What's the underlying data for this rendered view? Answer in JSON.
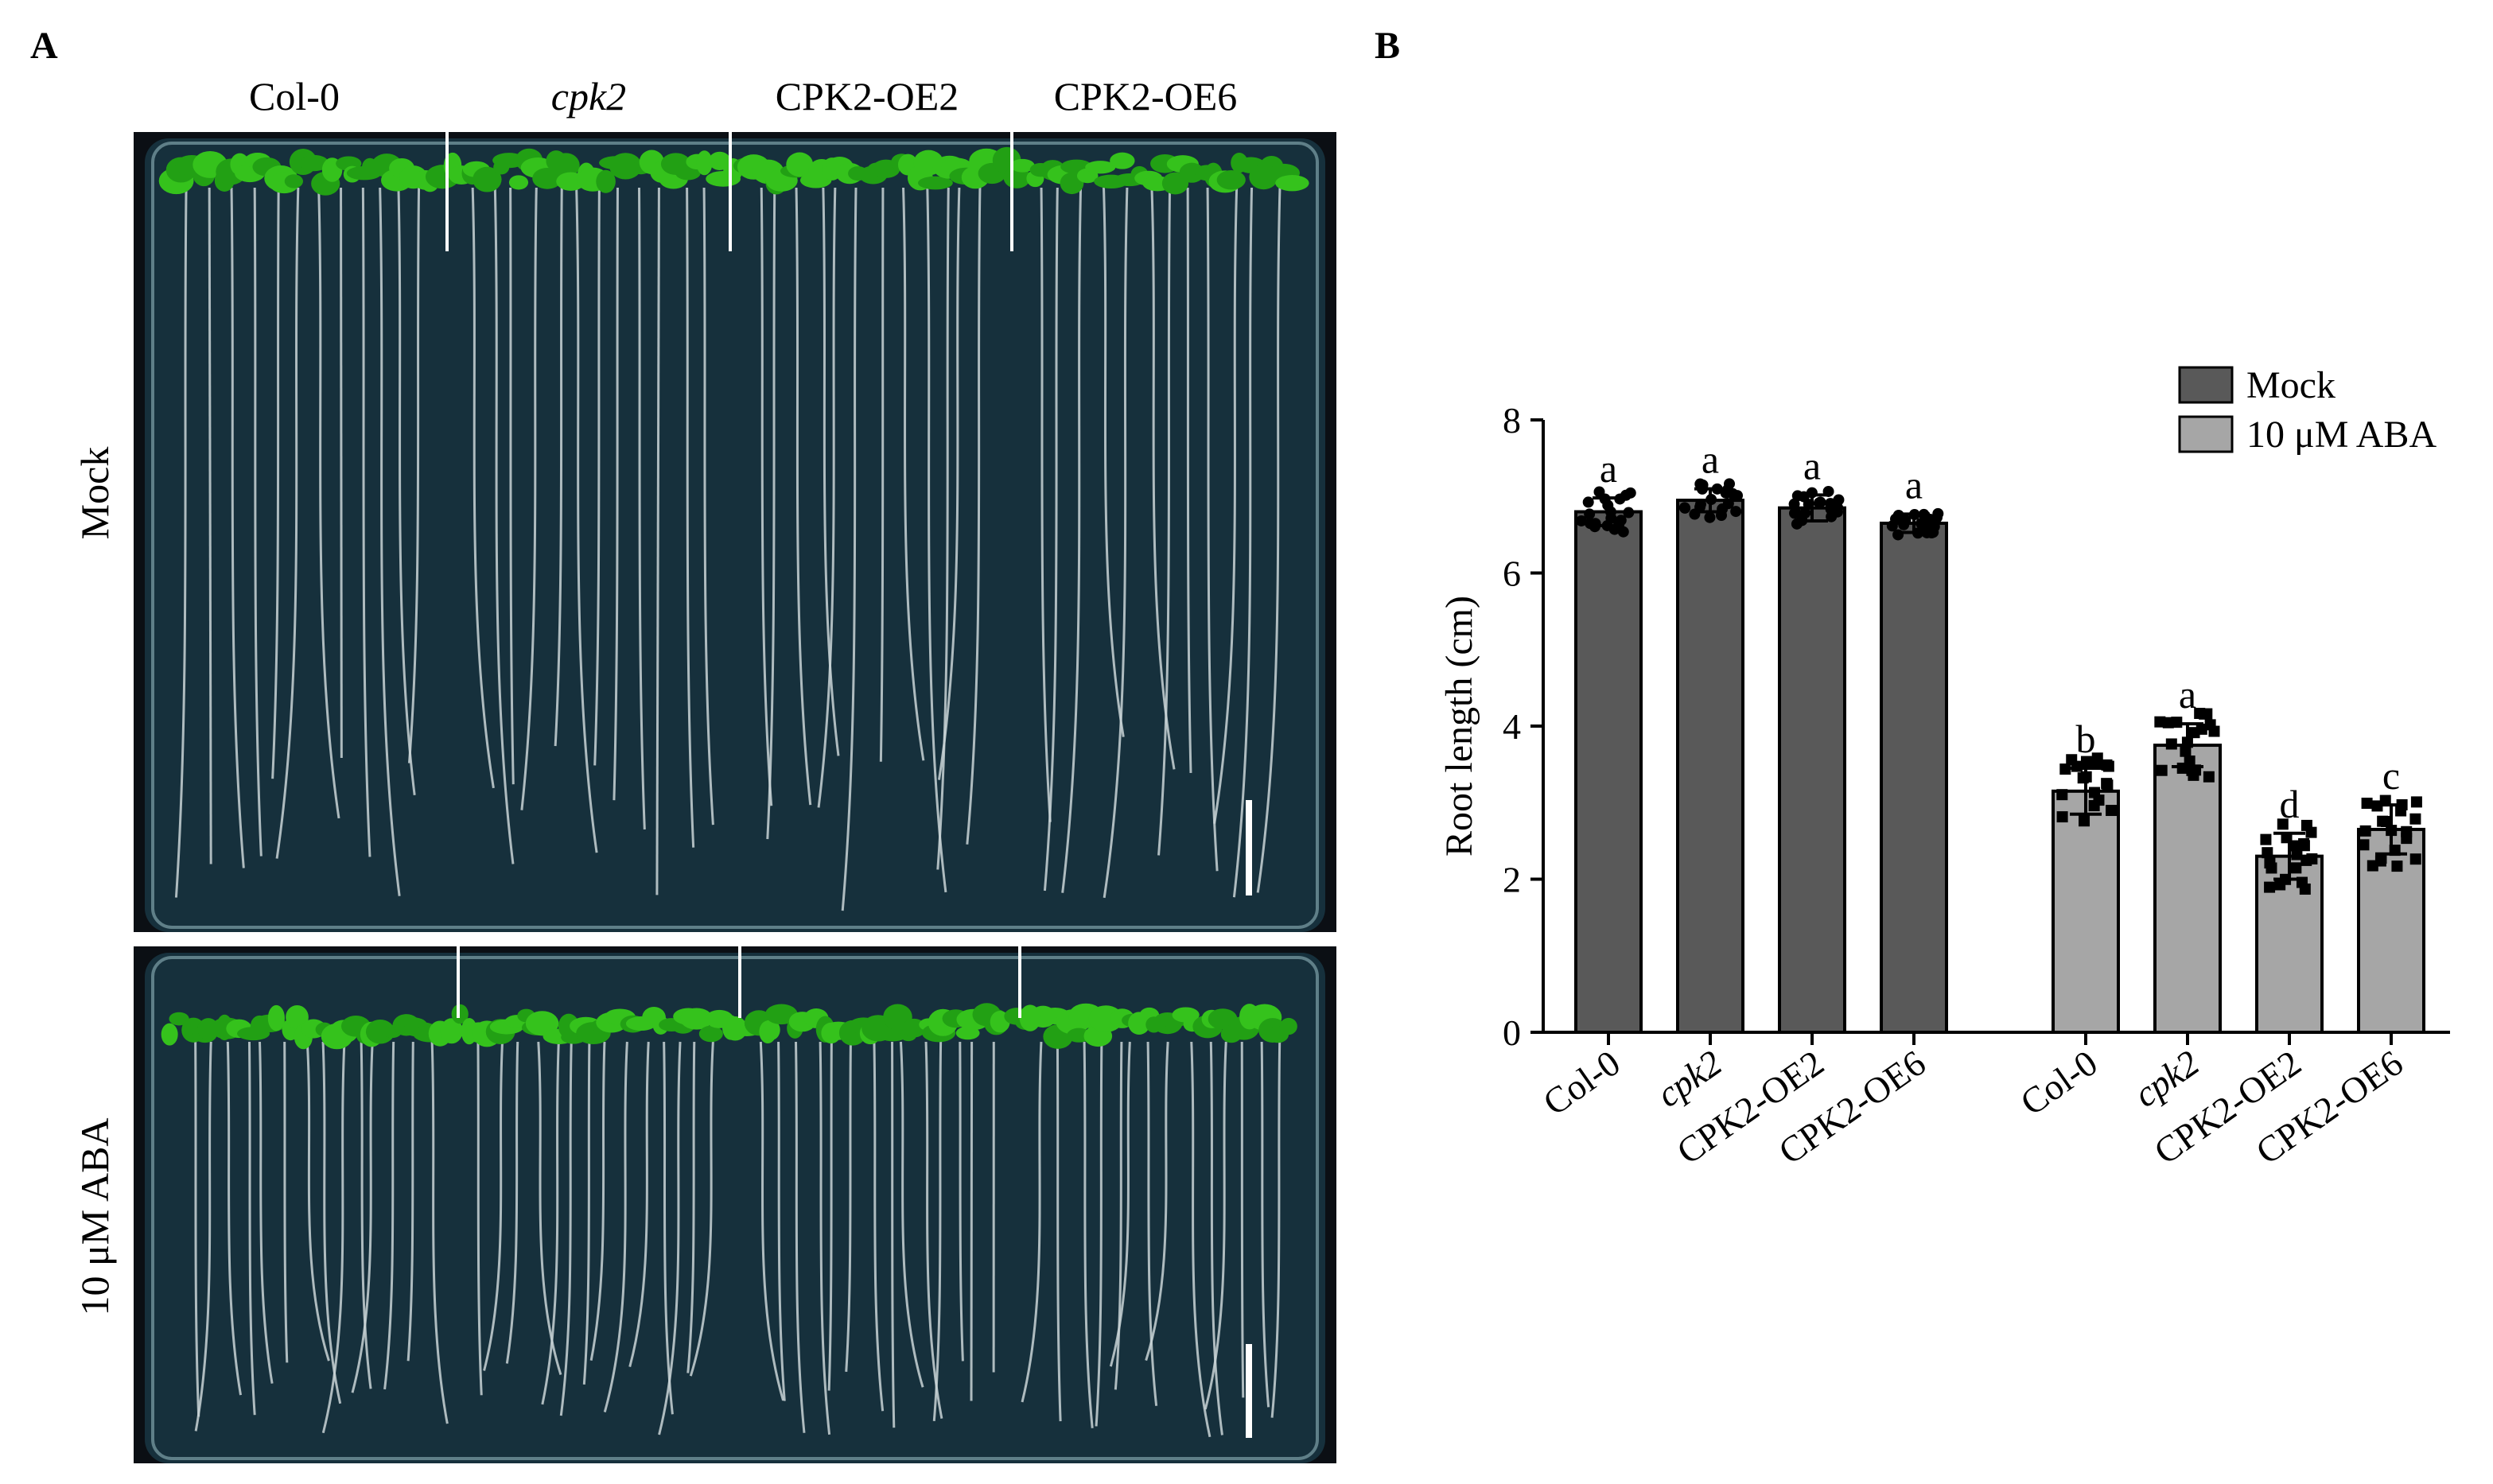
{
  "panels": {
    "a_label": "A",
    "b_label": "B"
  },
  "photo": {
    "genotypes": [
      {
        "label": "Col-0",
        "italic": false
      },
      {
        "label": "cpk2",
        "italic": true
      },
      {
        "label": "CPK2-OE2",
        "italic": false
      },
      {
        "label": "CPK2-OE6",
        "italic": false
      }
    ],
    "rows": {
      "mock": "Mock",
      "aba": "10 μM ABA"
    }
  },
  "chart_data": {
    "type": "bar",
    "ylabel": "Root length (cm)",
    "ylim": [
      0,
      8
    ],
    "yticks": [
      0,
      2,
      4,
      6,
      8
    ],
    "groups": [
      {
        "name": "Mock",
        "color": "#595959",
        "bars": [
          {
            "category": "Col-0",
            "italic": false,
            "value": 6.8,
            "sd": 0.18,
            "letter": "a"
          },
          {
            "category": "cpk2",
            "italic": true,
            "value": 6.95,
            "sd": 0.15,
            "letter": "a"
          },
          {
            "category": "CPK2-OE2",
            "italic": false,
            "value": 6.85,
            "sd": 0.17,
            "letter": "a"
          },
          {
            "category": "CPK2-OE6",
            "italic": false,
            "value": 6.65,
            "sd": 0.12,
            "letter": "a"
          }
        ]
      },
      {
        "name": "10 μM ABA",
        "color": "#a6a6a6",
        "bars": [
          {
            "category": "Col-0",
            "italic": false,
            "value": 3.15,
            "sd": 0.3,
            "letter": "b"
          },
          {
            "category": "cpk2",
            "italic": true,
            "value": 3.75,
            "sd": 0.28,
            "letter": "a"
          },
          {
            "category": "CPK2-OE2",
            "italic": false,
            "value": 2.3,
            "sd": 0.3,
            "letter": "d"
          },
          {
            "category": "CPK2-OE6",
            "italic": false,
            "value": 2.65,
            "sd": 0.32,
            "letter": "c"
          }
        ]
      }
    ],
    "legend": {
      "placement": "top-right",
      "entries": [
        {
          "label": "Mock",
          "color": "#595959"
        },
        {
          "label": "10 μM ABA",
          "color": "#a6a6a6"
        }
      ]
    }
  }
}
